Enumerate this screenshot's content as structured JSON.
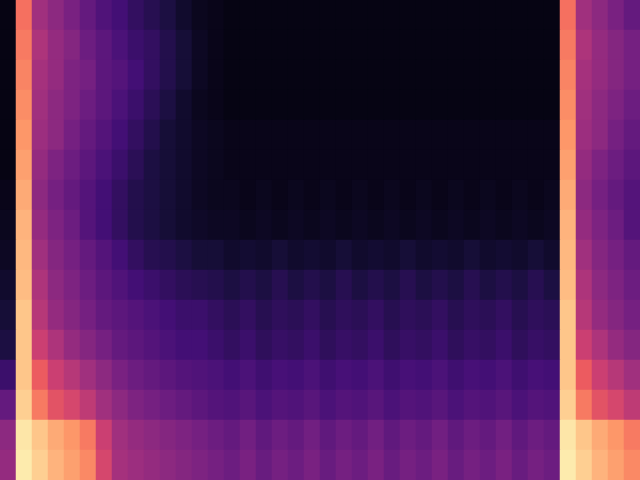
{
  "chart_data": {
    "type": "heatmap",
    "tick_labels": false,
    "grid": false,
    "zlim": [
      0,
      100
    ],
    "cells": [
      [
        3,
        70,
        45,
        40,
        35,
        30,
        25,
        22,
        18,
        15,
        12,
        8,
        5,
        4,
        3,
        3,
        3,
        3,
        3,
        3,
        3,
        3,
        3,
        3,
        3,
        3,
        3,
        3,
        3,
        3,
        3,
        3,
        3,
        3,
        3,
        70,
        45,
        40,
        35,
        30
      ],
      [
        3,
        72,
        48,
        42,
        38,
        32,
        28,
        24,
        20,
        18,
        14,
        10,
        6,
        4,
        3,
        3,
        3,
        3,
        3,
        3,
        3,
        3,
        3,
        3,
        3,
        3,
        3,
        3,
        3,
        3,
        3,
        3,
        3,
        3,
        3,
        72,
        48,
        42,
        38,
        34
      ],
      [
        3,
        74,
        46,
        42,
        36,
        34,
        28,
        26,
        22,
        18,
        14,
        10,
        6,
        4,
        3,
        3,
        3,
        3,
        3,
        3,
        3,
        3,
        3,
        3,
        3,
        3,
        3,
        3,
        3,
        3,
        3,
        3,
        3,
        3,
        3,
        74,
        46,
        42,
        38,
        34
      ],
      [
        3,
        76,
        45,
        40,
        36,
        32,
        28,
        24,
        20,
        16,
        12,
        8,
        5,
        4,
        3,
        3,
        3,
        3,
        3,
        3,
        3,
        3,
        3,
        3,
        3,
        3,
        3,
        3,
        3,
        3,
        3,
        3,
        3,
        3,
        3,
        76,
        45,
        40,
        36,
        32
      ],
      [
        3,
        78,
        44,
        40,
        34,
        30,
        26,
        22,
        18,
        14,
        10,
        8,
        6,
        5,
        4,
        4,
        4,
        4,
        4,
        4,
        4,
        4,
        4,
        4,
        4,
        4,
        4,
        4,
        4,
        4,
        4,
        4,
        4,
        4,
        4,
        78,
        44,
        40,
        34,
        30
      ],
      [
        3,
        80,
        42,
        36,
        32,
        28,
        24,
        20,
        16,
        12,
        10,
        8,
        6,
        5,
        4,
        4,
        4,
        4,
        4,
        4,
        4,
        4,
        4,
        4,
        4,
        4,
        4,
        4,
        4,
        4,
        4,
        4,
        4,
        4,
        4,
        80,
        42,
        36,
        32,
        28
      ],
      [
        4,
        82,
        40,
        34,
        30,
        26,
        22,
        18,
        14,
        12,
        10,
        8,
        6,
        5,
        5,
        4,
        5,
        4,
        5,
        4,
        5,
        4,
        5,
        4,
        5,
        4,
        5,
        4,
        5,
        4,
        5,
        4,
        5,
        4,
        5,
        82,
        40,
        34,
        30,
        26
      ],
      [
        5,
        84,
        42,
        36,
        32,
        26,
        22,
        18,
        14,
        12,
        10,
        8,
        7,
        6,
        6,
        5,
        6,
        5,
        6,
        5,
        6,
        5,
        6,
        5,
        6,
        5,
        6,
        5,
        6,
        5,
        6,
        5,
        6,
        5,
        6,
        84,
        42,
        36,
        32,
        26
      ],
      [
        6,
        85,
        45,
        38,
        34,
        30,
        26,
        22,
        18,
        15,
        14,
        12,
        10,
        10,
        8,
        9,
        8,
        10,
        8,
        9,
        8,
        10,
        8,
        9,
        8,
        10,
        8,
        9,
        8,
        10,
        8,
        9,
        8,
        10,
        8,
        85,
        45,
        38,
        34,
        30
      ],
      [
        8,
        86,
        48,
        40,
        36,
        32,
        28,
        25,
        22,
        20,
        18,
        16,
        15,
        14,
        12,
        14,
        12,
        15,
        12,
        14,
        12,
        15,
        12,
        14,
        12,
        15,
        12,
        14,
        12,
        15,
        12,
        14,
        12,
        15,
        12,
        86,
        48,
        40,
        36,
        32
      ],
      [
        10,
        88,
        50,
        42,
        38,
        34,
        30,
        28,
        26,
        24,
        22,
        20,
        20,
        18,
        16,
        18,
        15,
        17,
        16,
        18,
        15,
        17,
        16,
        18,
        15,
        17,
        16,
        18,
        15,
        17,
        16,
        18,
        15,
        17,
        16,
        88,
        50,
        42,
        38,
        34
      ],
      [
        12,
        88,
        55,
        48,
        42,
        38,
        34,
        30,
        28,
        26,
        24,
        22,
        22,
        20,
        18,
        20,
        17,
        19,
        18,
        20,
        17,
        19,
        18,
        20,
        17,
        19,
        18,
        20,
        17,
        19,
        18,
        20,
        17,
        19,
        18,
        88,
        55,
        48,
        42,
        38
      ],
      [
        20,
        88,
        65,
        55,
        50,
        45,
        40,
        35,
        32,
        30,
        28,
        26,
        25,
        24,
        22,
        24,
        21,
        23,
        22,
        24,
        21,
        23,
        22,
        24,
        21,
        23,
        22,
        24,
        21,
        23,
        22,
        24,
        21,
        23,
        22,
        88,
        65,
        55,
        50,
        45
      ],
      [
        30,
        90,
        72,
        62,
        58,
        52,
        45,
        40,
        36,
        34,
        32,
        30,
        28,
        26,
        25,
        27,
        24,
        26,
        25,
        27,
        24,
        26,
        25,
        27,
        24,
        26,
        25,
        27,
        24,
        26,
        25,
        27,
        24,
        26,
        25,
        90,
        72,
        62,
        58,
        52
      ],
      [
        40,
        95,
        88,
        82,
        78,
        72,
        55,
        45,
        42,
        40,
        38,
        36,
        34,
        32,
        30,
        33,
        29,
        32,
        30,
        33,
        29,
        32,
        30,
        33,
        29,
        32,
        30,
        33,
        29,
        32,
        30,
        33,
        29,
        32,
        30,
        95,
        88,
        82,
        78,
        72
      ],
      [
        42,
        96,
        90,
        84,
        80,
        75,
        58,
        46,
        44,
        42,
        40,
        38,
        36,
        34,
        32,
        35,
        31,
        34,
        32,
        35,
        31,
        34,
        32,
        35,
        31,
        34,
        32,
        35,
        31,
        34,
        32,
        35,
        31,
        34,
        32,
        96,
        90,
        84,
        80,
        75
      ]
    ]
  }
}
